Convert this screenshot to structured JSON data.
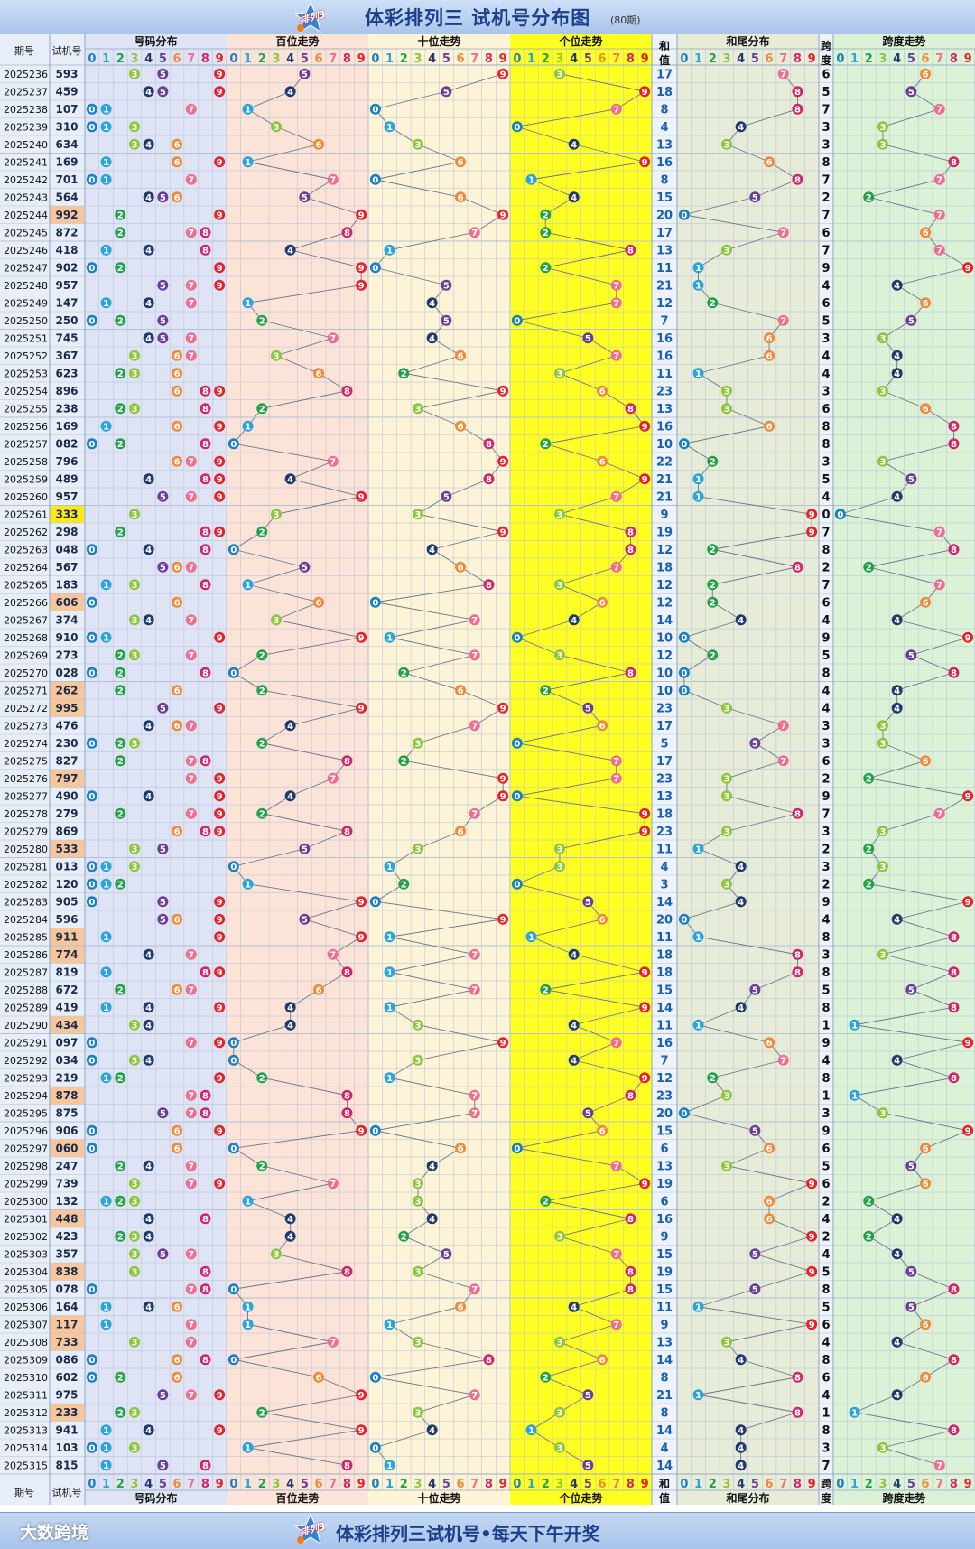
{
  "header": {
    "title": "体彩排列三 试机号分布图",
    "subtitle": "(80期)",
    "logo_text": "排列3"
  },
  "footer": {
    "brand": "大数跨境",
    "slogan": "体彩排列三试机号•每天下午开奖",
    "logo_text": "排列3"
  },
  "columns": {
    "period": "期号",
    "trial": "试机号",
    "dist": "号码分布",
    "hund": "百位走势",
    "tens": "十位走势",
    "ones": "个位走势",
    "sum1": "和",
    "sum2": "值",
    "tail": "和尾分布",
    "span1": "跨",
    "span2": "度",
    "spantrend": "跨度走势"
  },
  "digits": [
    "0",
    "1",
    "2",
    "3",
    "4",
    "5",
    "6",
    "7",
    "8",
    "9"
  ],
  "colors": {
    "0": "#1a7fc4",
    "1": "#2ba4dc",
    "2": "#22a14a",
    "3": "#8cc63e",
    "4": "#1f3a6e",
    "5": "#6a3d9a",
    "6": "#ef8a3a",
    "7": "#ee6d90",
    "8": "#d1256a",
    "9": "#e3222b"
  },
  "rows": [
    [
      "2025236",
      "593"
    ],
    [
      "2025237",
      "459"
    ],
    [
      "2025238",
      "107"
    ],
    [
      "2025239",
      "310"
    ],
    [
      "2025240",
      "634"
    ],
    [
      "2025241",
      "169"
    ],
    [
      "2025242",
      "701"
    ],
    [
      "2025243",
      "564"
    ],
    [
      "2025244",
      "992"
    ],
    [
      "2025245",
      "872"
    ],
    [
      "2025246",
      "418"
    ],
    [
      "2025247",
      "902"
    ],
    [
      "2025248",
      "957"
    ],
    [
      "2025249",
      "147"
    ],
    [
      "2025250",
      "250"
    ],
    [
      "2025251",
      "745"
    ],
    [
      "2025252",
      "367"
    ],
    [
      "2025253",
      "623"
    ],
    [
      "2025254",
      "896"
    ],
    [
      "2025255",
      "238"
    ],
    [
      "2025256",
      "169"
    ],
    [
      "2025257",
      "082"
    ],
    [
      "2025258",
      "796"
    ],
    [
      "2025259",
      "489"
    ],
    [
      "2025260",
      "957"
    ],
    [
      "2025261",
      "333"
    ],
    [
      "2025262",
      "298"
    ],
    [
      "2025263",
      "048"
    ],
    [
      "2025264",
      "567"
    ],
    [
      "2025265",
      "183"
    ],
    [
      "2025266",
      "606"
    ],
    [
      "2025267",
      "374"
    ],
    [
      "2025268",
      "910"
    ],
    [
      "2025269",
      "273"
    ],
    [
      "2025270",
      "028"
    ],
    [
      "2025271",
      "262"
    ],
    [
      "2025272",
      "995"
    ],
    [
      "2025273",
      "476"
    ],
    [
      "2025274",
      "230"
    ],
    [
      "2025275",
      "827"
    ],
    [
      "2025276",
      "797"
    ],
    [
      "2025277",
      "490"
    ],
    [
      "2025278",
      "279"
    ],
    [
      "2025279",
      "869"
    ],
    [
      "2025280",
      "533"
    ],
    [
      "2025281",
      "013"
    ],
    [
      "2025282",
      "120"
    ],
    [
      "2025283",
      "905"
    ],
    [
      "2025284",
      "596"
    ],
    [
      "2025285",
      "911"
    ],
    [
      "2025286",
      "774"
    ],
    [
      "2025287",
      "819"
    ],
    [
      "2025288",
      "672"
    ],
    [
      "2025289",
      "419"
    ],
    [
      "2025290",
      "434"
    ],
    [
      "2025291",
      "097"
    ],
    [
      "2025292",
      "034"
    ],
    [
      "2025293",
      "219"
    ],
    [
      "2025294",
      "878"
    ],
    [
      "2025295",
      "875"
    ],
    [
      "2025296",
      "906"
    ],
    [
      "2025297",
      "060"
    ],
    [
      "2025298",
      "247"
    ],
    [
      "2025299",
      "739"
    ],
    [
      "2025300",
      "132"
    ],
    [
      "2025301",
      "448"
    ],
    [
      "2025302",
      "423"
    ],
    [
      "2025303",
      "357"
    ],
    [
      "2025304",
      "838"
    ],
    [
      "2025305",
      "078"
    ],
    [
      "2025306",
      "164"
    ],
    [
      "2025307",
      "117"
    ],
    [
      "2025308",
      "733"
    ],
    [
      "2025309",
      "086"
    ],
    [
      "2025310",
      "602"
    ],
    [
      "2025311",
      "975"
    ],
    [
      "2025312",
      "233"
    ],
    [
      "2025313",
      "941"
    ],
    [
      "2025314",
      "103"
    ],
    [
      "2025315",
      "815"
    ]
  ]
}
